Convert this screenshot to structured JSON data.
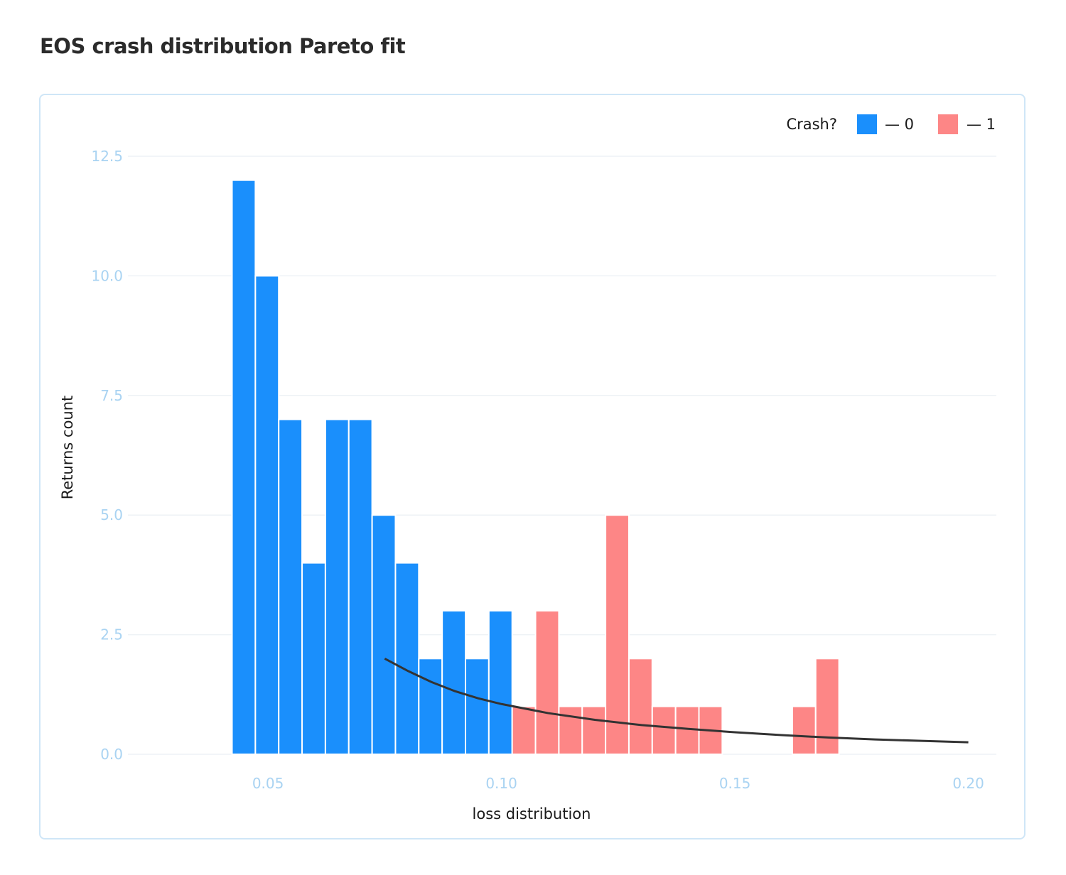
{
  "page": {
    "title": "EOS crash distribution Pareto fit"
  },
  "chart_data": {
    "type": "bar",
    "title": "EOS crash distribution Pareto fit",
    "xlabel": "loss distribution",
    "ylabel": "Returns count",
    "xlim": [
      0.02,
      0.206
    ],
    "ylim": [
      0,
      12.5
    ],
    "grid": true,
    "bin_width": 0.005,
    "x_ticks": [
      {
        "value": 0.05,
        "label": "0.05"
      },
      {
        "value": 0.1,
        "label": "0.10"
      },
      {
        "value": 0.15,
        "label": "0.15"
      },
      {
        "value": 0.2,
        "label": "0.20"
      }
    ],
    "y_ticks": [
      {
        "value": 0,
        "label": "0.0"
      },
      {
        "value": 2.5,
        "label": "2.5"
      },
      {
        "value": 5,
        "label": "5.0"
      },
      {
        "value": 7.5,
        "label": "7.5"
      },
      {
        "value": 10,
        "label": "10.0"
      },
      {
        "value": 12.5,
        "label": "12.5"
      }
    ],
    "legend": {
      "title": "Crash?",
      "placement": "top-right",
      "entries": [
        {
          "label": "— 0",
          "color": "#1a8ffc"
        },
        {
          "label": "— 1",
          "color": "#fd8686"
        }
      ]
    },
    "series": [
      {
        "name": "0",
        "color": "#1a8ffc",
        "bins": [
          {
            "x0": 0.0423,
            "count": 12
          },
          {
            "x0": 0.0473,
            "count": 10
          },
          {
            "x0": 0.0523,
            "count": 7
          },
          {
            "x0": 0.0573,
            "count": 4
          },
          {
            "x0": 0.0623,
            "count": 7
          },
          {
            "x0": 0.0673,
            "count": 7
          },
          {
            "x0": 0.0723,
            "count": 5
          },
          {
            "x0": 0.0773,
            "count": 4
          },
          {
            "x0": 0.0823,
            "count": 2
          },
          {
            "x0": 0.0873,
            "count": 3
          },
          {
            "x0": 0.0923,
            "count": 2
          },
          {
            "x0": 0.0973,
            "count": 3
          }
        ]
      },
      {
        "name": "1",
        "color": "#fd8686",
        "bins": [
          {
            "x0": 0.1023,
            "count": 1
          },
          {
            "x0": 0.1073,
            "count": 3
          },
          {
            "x0": 0.1123,
            "count": 1
          },
          {
            "x0": 0.1173,
            "count": 1
          },
          {
            "x0": 0.1223,
            "count": 5
          },
          {
            "x0": 0.1273,
            "count": 2
          },
          {
            "x0": 0.1323,
            "count": 1
          },
          {
            "x0": 0.1373,
            "count": 1
          },
          {
            "x0": 0.1423,
            "count": 1
          },
          {
            "x0": 0.1623,
            "count": 1
          },
          {
            "x0": 0.1673,
            "count": 2
          }
        ]
      }
    ],
    "fit_line": {
      "type": "line",
      "color": "#333333",
      "points": [
        [
          0.075,
          2.0
        ],
        [
          0.08,
          1.74
        ],
        [
          0.085,
          1.51
        ],
        [
          0.09,
          1.32
        ],
        [
          0.095,
          1.17
        ],
        [
          0.1,
          1.05
        ],
        [
          0.11,
          0.86
        ],
        [
          0.12,
          0.72
        ],
        [
          0.13,
          0.61
        ],
        [
          0.14,
          0.53
        ],
        [
          0.15,
          0.46
        ],
        [
          0.16,
          0.4
        ],
        [
          0.17,
          0.35
        ],
        [
          0.18,
          0.31
        ],
        [
          0.19,
          0.28
        ],
        [
          0.2,
          0.25
        ]
      ]
    }
  }
}
